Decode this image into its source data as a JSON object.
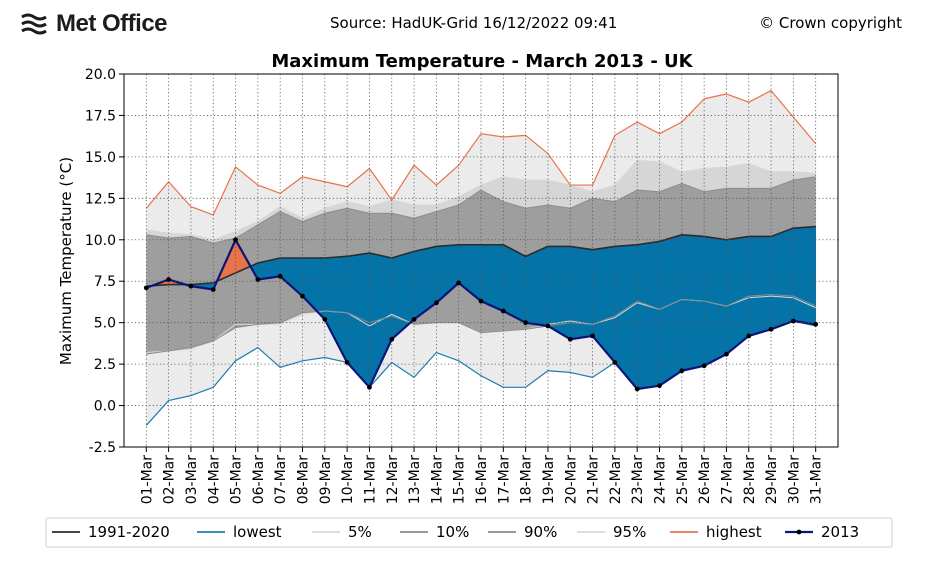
{
  "header": {
    "logo_text": "Met Office",
    "source": "Source: HadUK-Grid 16/12/2022 09:41",
    "copyright": "© Crown copyright"
  },
  "colors": {
    "band_outer": "#ebebeb",
    "band_5_10": "#d6d6d6",
    "band_10_90": "#9e9e9e",
    "band_inner": "#888888",
    "above_fill": "#e8734a",
    "below_fill": "#0474a8",
    "mean": "#2b2b2b",
    "lowest": "#1a7fb0",
    "highest": "#e8734a",
    "series_2013": "#0b1478",
    "p5": "#d8d8d8",
    "p10": "#8c8c8c",
    "p90": "#8c8c8c",
    "p95": "#d8d8d8"
  },
  "chart_data": {
    "type": "line",
    "title": "Maximum Temperature - March 2013 - UK",
    "xlabel": "",
    "ylabel": "Maximum Temperature (°C)",
    "ylim": [
      -2.5,
      20.0
    ],
    "yticks": [
      "-2.5",
      "0.0",
      "2.5",
      "5.0",
      "7.5",
      "10.0",
      "12.5",
      "15.0",
      "17.5",
      "20.0"
    ],
    "ytick_values": [
      -2.5,
      0.0,
      2.5,
      5.0,
      7.5,
      10.0,
      12.5,
      15.0,
      17.5,
      20.0
    ],
    "grid": true,
    "legend_position": "bottom",
    "categories": [
      "01-Mar",
      "02-Mar",
      "03-Mar",
      "04-Mar",
      "05-Mar",
      "06-Mar",
      "07-Mar",
      "08-Mar",
      "09-Mar",
      "10-Mar",
      "11-Mar",
      "12-Mar",
      "13-Mar",
      "14-Mar",
      "15-Mar",
      "16-Mar",
      "17-Mar",
      "18-Mar",
      "19-Mar",
      "20-Mar",
      "21-Mar",
      "22-Mar",
      "23-Mar",
      "24-Mar",
      "25-Mar",
      "26-Mar",
      "27-Mar",
      "28-Mar",
      "29-Mar",
      "30-Mar",
      "31-Mar"
    ],
    "series": [
      {
        "name": "1991-2020",
        "key": "mean",
        "values": [
          7.2,
          7.3,
          7.3,
          7.4,
          8.0,
          8.6,
          8.9,
          8.9,
          8.9,
          9.0,
          9.2,
          8.9,
          9.3,
          9.6,
          9.7,
          9.7,
          9.7,
          9.0,
          9.6,
          9.6,
          9.4,
          9.6,
          9.7,
          9.9,
          10.3,
          10.2,
          10.0,
          10.2,
          10.2,
          10.7,
          10.8
        ]
      },
      {
        "name": "lowest",
        "key": "lowest",
        "values": [
          -1.2,
          0.3,
          0.6,
          1.1,
          2.7,
          3.5,
          2.3,
          2.7,
          2.9,
          2.6,
          1.1,
          2.6,
          1.7,
          3.2,
          2.7,
          1.8,
          1.1,
          1.1,
          2.1,
          2.0,
          1.7,
          2.6,
          1.0,
          1.2,
          2.1,
          2.4,
          3.1,
          4.2,
          4.6,
          5.1,
          4.8
        ]
      },
      {
        "name": "5%",
        "key": "p5",
        "values": [
          3.2,
          3.3,
          3.4,
          3.9,
          4.9,
          4.9,
          4.9,
          5.5,
          5.7,
          5.6,
          4.8,
          5.5,
          4.9,
          5.0,
          5.0,
          4.4,
          4.5,
          4.6,
          4.9,
          5.1,
          4.9,
          5.3,
          6.2,
          5.8,
          6.4,
          6.3,
          6.0,
          6.5,
          6.6,
          6.5,
          5.9
        ]
      },
      {
        "name": "10%",
        "key": "p10",
        "values": [
          3.1,
          3.3,
          3.5,
          3.9,
          4.7,
          4.9,
          5.0,
          5.6,
          5.7,
          5.6,
          5.0,
          5.4,
          4.9,
          5.0,
          5.0,
          4.4,
          4.5,
          4.6,
          4.8,
          5.0,
          4.9,
          5.4,
          6.3,
          5.8,
          6.4,
          6.3,
          6.0,
          6.6,
          6.7,
          6.6,
          6.0
        ]
      },
      {
        "name": "90%",
        "key": "p90",
        "values": [
          10.3,
          10.1,
          10.2,
          9.8,
          10.1,
          10.9,
          11.7,
          11.1,
          11.6,
          11.9,
          11.6,
          11.6,
          11.3,
          11.7,
          12.1,
          13.0,
          12.3,
          11.9,
          12.1,
          11.9,
          12.5,
          12.3,
          13.0,
          12.9,
          13.4,
          12.9,
          13.1,
          13.1,
          13.1,
          13.6,
          13.8
        ]
      },
      {
        "name": "95%",
        "key": "p95",
        "values": [
          10.6,
          10.4,
          10.3,
          10.0,
          10.5,
          11.1,
          12.0,
          11.3,
          11.9,
          12.3,
          12.0,
          12.4,
          12.1,
          12.1,
          12.6,
          13.3,
          13.8,
          13.6,
          13.6,
          13.3,
          12.9,
          13.3,
          14.8,
          14.7,
          14.1,
          14.3,
          14.4,
          14.6,
          14.1,
          14.1,
          14.0
        ]
      },
      {
        "name": "highest",
        "key": "highest",
        "values": [
          11.9,
          13.5,
          12.0,
          11.5,
          14.4,
          13.3,
          12.8,
          13.8,
          13.5,
          13.2,
          14.3,
          12.4,
          14.5,
          13.3,
          14.5,
          16.4,
          16.2,
          16.3,
          15.2,
          13.3,
          13.3,
          16.3,
          17.1,
          16.4,
          17.1,
          18.5,
          18.8,
          18.3,
          19.0,
          17.4,
          15.8
        ]
      },
      {
        "name": "2013",
        "key": "series_2013",
        "values": [
          7.1,
          7.6,
          7.2,
          7.0,
          10.0,
          7.6,
          7.8,
          6.6,
          5.2,
          2.6,
          1.1,
          4.0,
          5.2,
          6.2,
          7.4,
          6.3,
          5.7,
          5.0,
          4.8,
          4.0,
          4.2,
          2.6,
          1.0,
          1.2,
          2.1,
          2.4,
          3.1,
          4.2,
          4.6,
          5.1,
          4.9
        ]
      }
    ]
  },
  "legend": [
    {
      "label": "1991-2020",
      "key": "mean"
    },
    {
      "label": "lowest",
      "key": "lowest"
    },
    {
      "label": "5%",
      "key": "p5"
    },
    {
      "label": "10%",
      "key": "p10"
    },
    {
      "label": "90%",
      "key": "p90"
    },
    {
      "label": "95%",
      "key": "p95"
    },
    {
      "label": "highest",
      "key": "highest"
    },
    {
      "label": "2013",
      "key": "series_2013"
    }
  ]
}
